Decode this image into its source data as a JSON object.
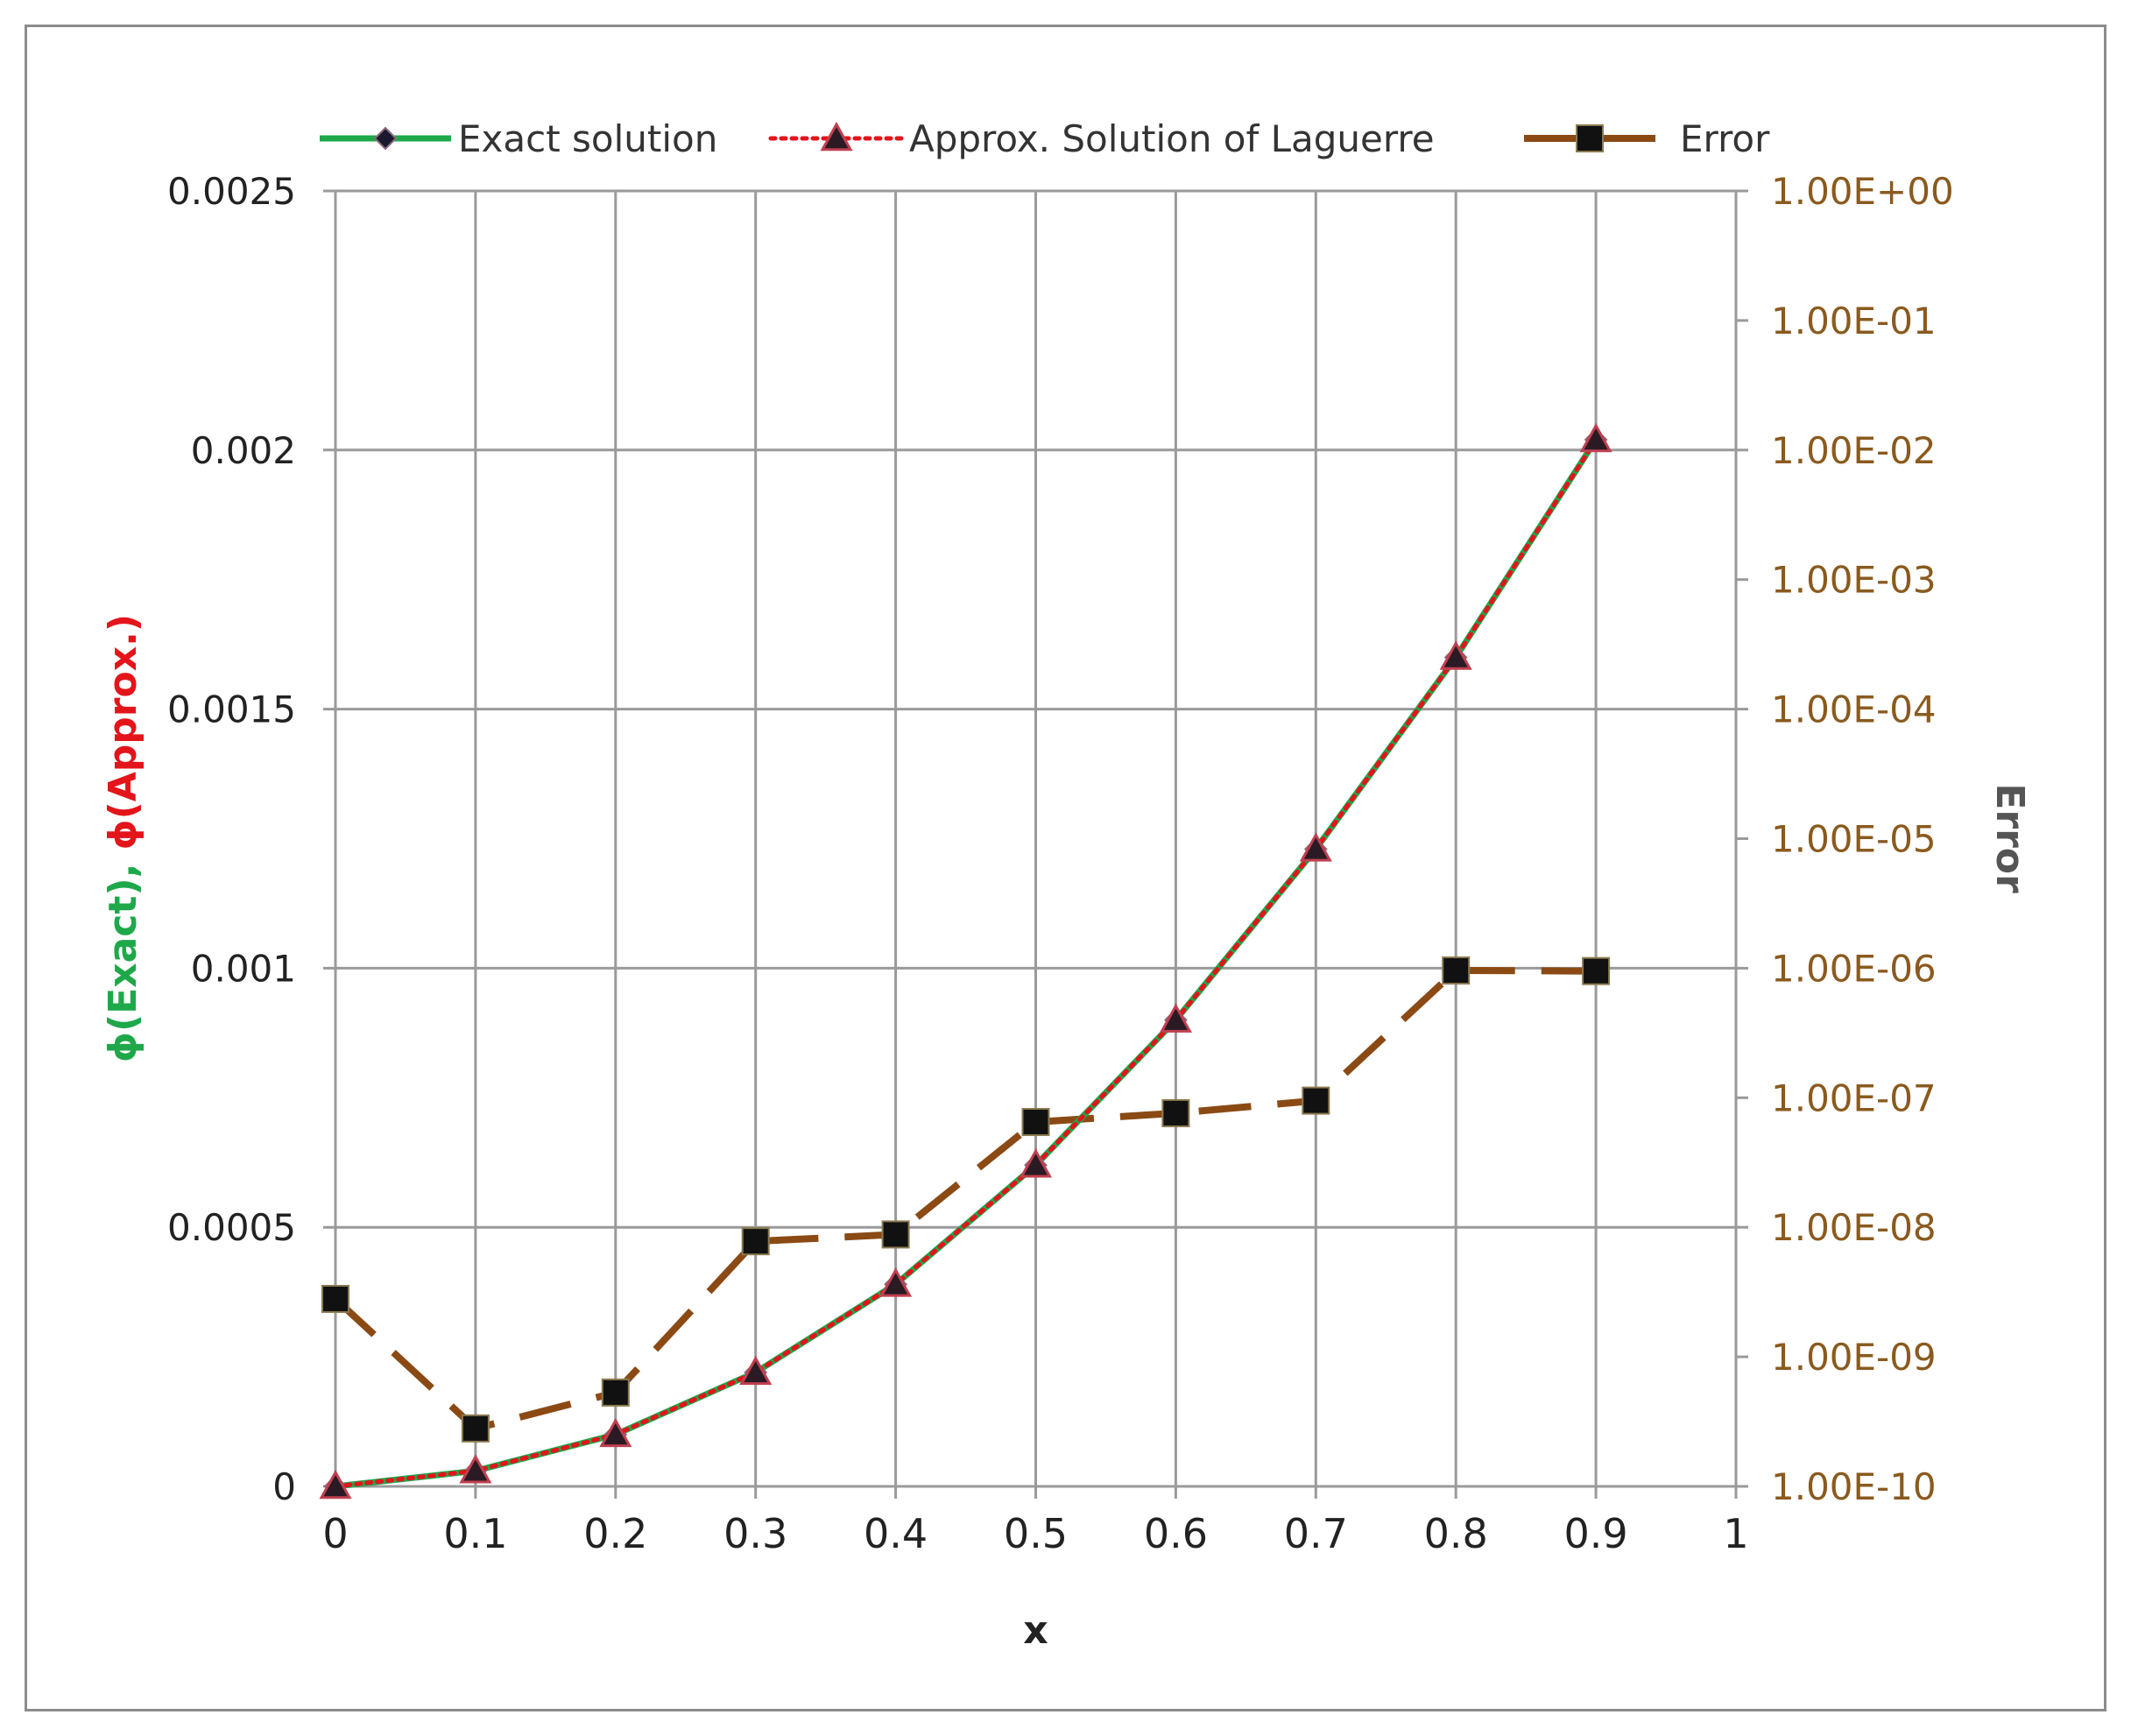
{
  "chart_data": {
    "type": "line",
    "xlabel": "x",
    "ylabel_parts": [
      {
        "text": "ϕ(Exact),",
        "color": "#1fa84a"
      },
      {
        "text": "ϕ(Approx.)",
        "color": "#e4141b"
      }
    ],
    "y2label": "Error",
    "xlim": [
      0,
      1
    ],
    "ylim": [
      0,
      0.0025
    ],
    "y2lim": [
      1e-10,
      1
    ],
    "y2scale": "log",
    "grid": true,
    "legend_position": "top",
    "x_ticks": [
      "0",
      "0.1",
      "0.2",
      "0.3",
      "0.4",
      "0.5",
      "0.6",
      "0.7",
      "0.8",
      "0.9",
      "1"
    ],
    "y_ticks": [
      "0",
      "0.0005",
      "0.001",
      "0.0015",
      "0.002",
      "0.0025"
    ],
    "y2_ticks": [
      "1.00E-10",
      "1.00E-09",
      "1.00E-08",
      "1.00E-07",
      "1.00E-06",
      "1.00E-05",
      "1.00E-04",
      "1.00E-03",
      "1.00E-02",
      "1.00E-01",
      "1.00E+00"
    ],
    "x": [
      0,
      0.1,
      0.2,
      0.3,
      0.4,
      0.5,
      0.6,
      0.7,
      0.8,
      0.9
    ],
    "series": [
      {
        "name": "Exact solution",
        "axis": "left",
        "color": "#1fa84a",
        "line": "solid",
        "marker": "diamond",
        "marker_color": "#1a1a2e",
        "values": [
          0,
          3e-05,
          0.0001,
          0.00022,
          0.00039,
          0.00062,
          0.0009,
          0.00123,
          0.0016,
          0.00202
        ]
      },
      {
        "name": "Approx. Solution of Laguerre",
        "axis": "left",
        "color": "#e4141b",
        "line": "dotted",
        "marker": "triangle",
        "marker_color": "#2a1a24",
        "values": [
          0,
          3e-05,
          0.0001,
          0.00022,
          0.00039,
          0.00062,
          0.0009,
          0.00123,
          0.0016,
          0.00202
        ]
      },
      {
        "name": "Error",
        "axis": "right",
        "color": "#8b4a14",
        "line": "dashed",
        "marker": "square",
        "marker_color": "#111111",
        "values": [
          2.8e-09,
          2.8e-10,
          5.3e-10,
          7.8e-09,
          8.8e-09,
          6.5e-08,
          7.6e-08,
          9.5e-08,
          9.6e-07,
          9.5e-07
        ]
      }
    ]
  }
}
